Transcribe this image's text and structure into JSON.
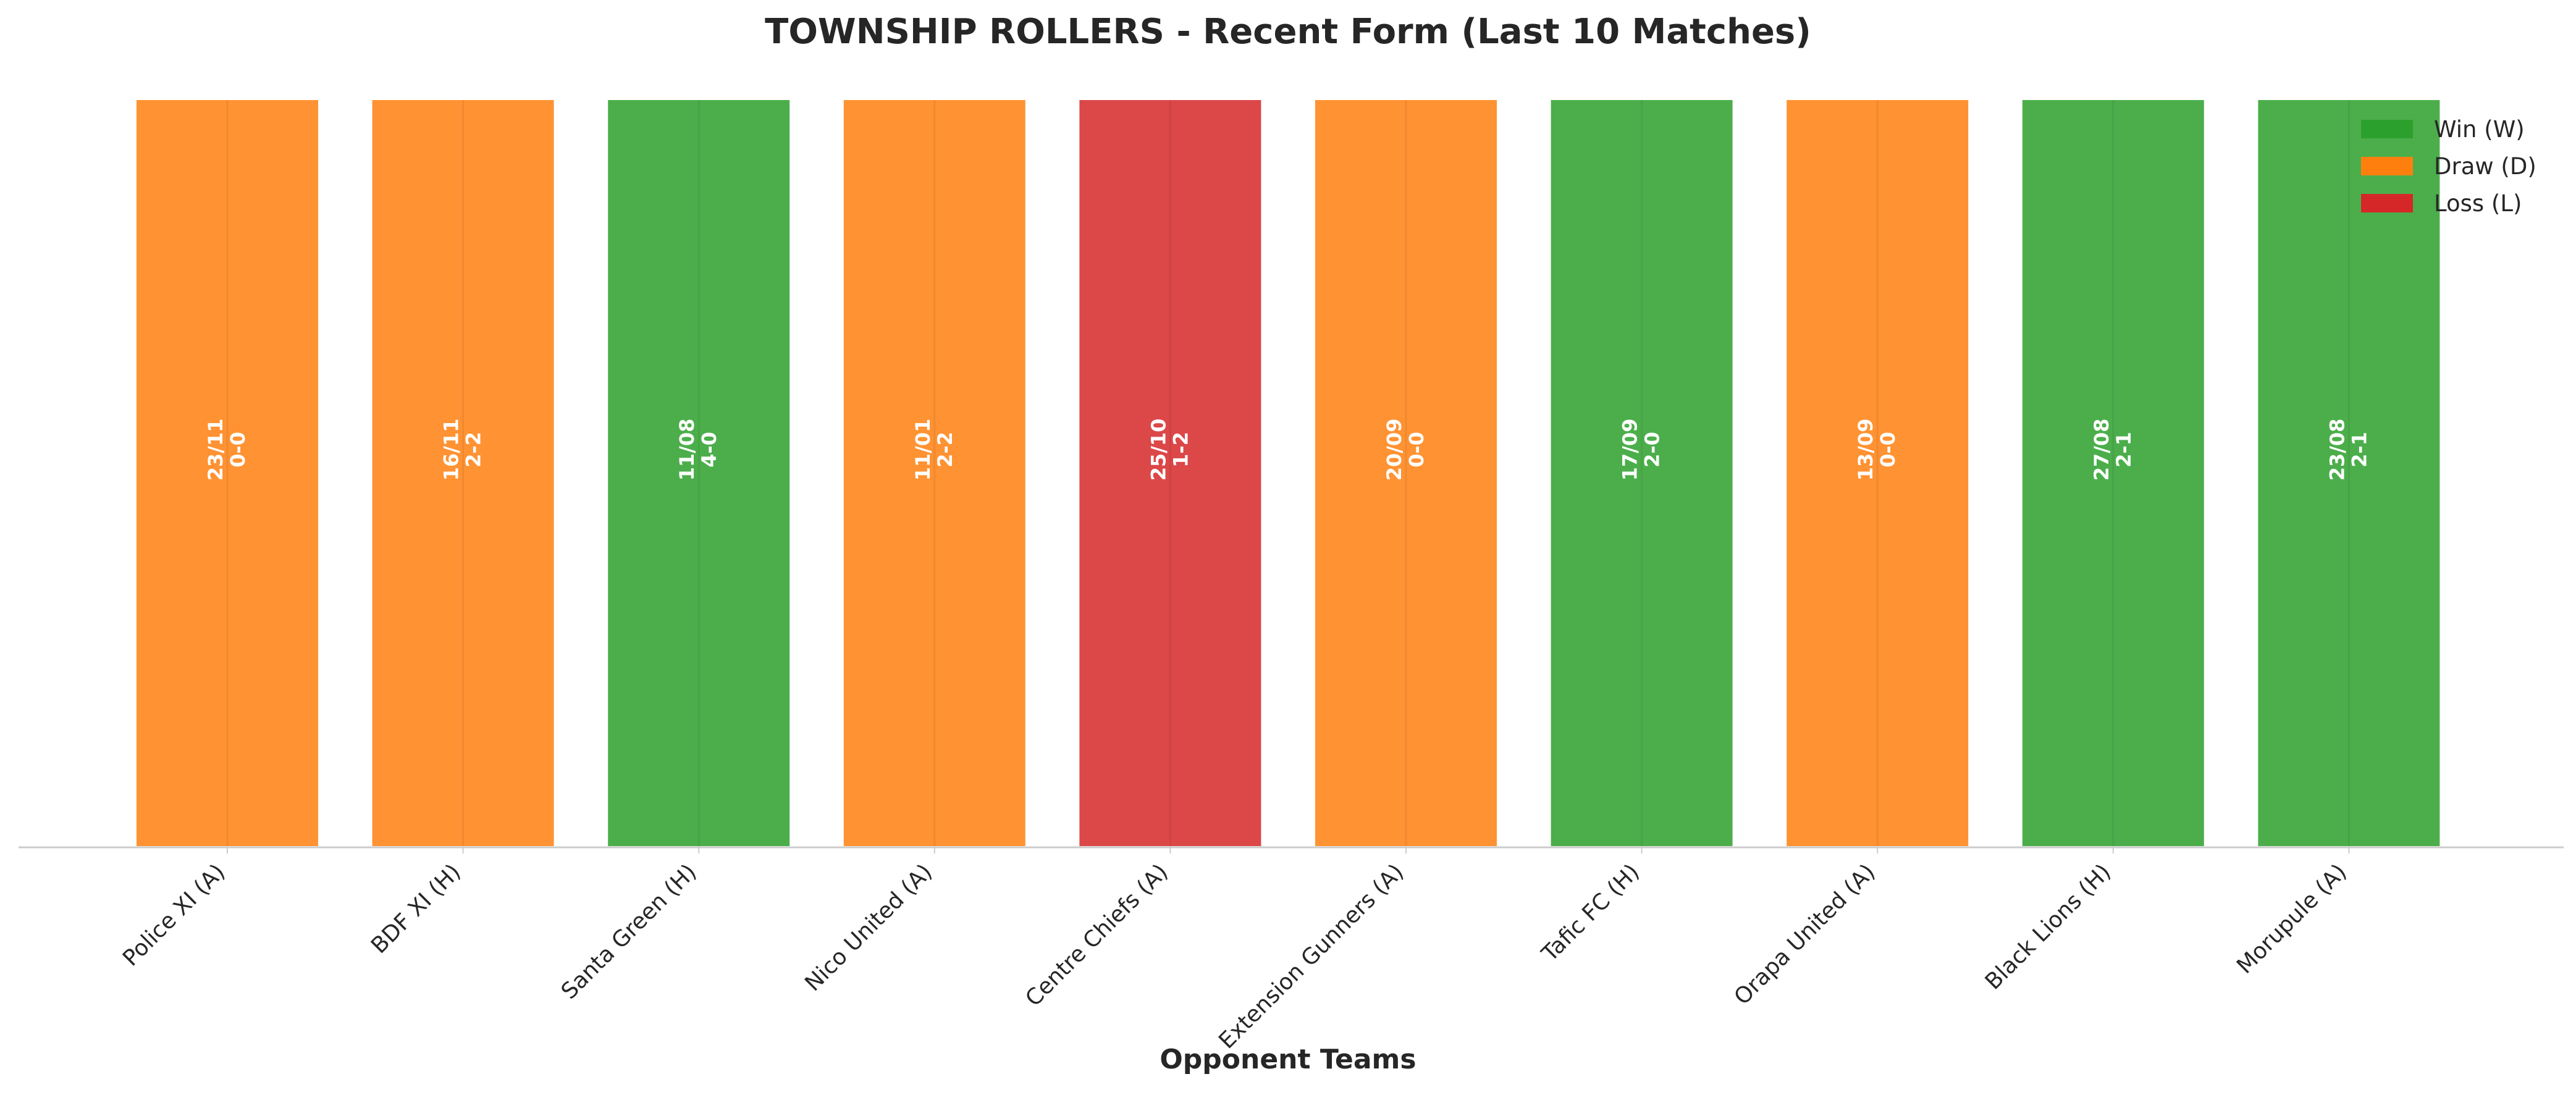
{
  "chart_data": {
    "type": "bar",
    "title": "TOWNSHIP ROLLERS - Recent Form (Last 10 Matches)",
    "xlabel": "Opponent Teams",
    "ylabel": "",
    "ylim": [
      0,
      1
    ],
    "grid": false,
    "legend_position": "top-right",
    "categories": [
      "Police XI (A)",
      "BDF XI (H)",
      "Santa Green (H)",
      "Nico United (A)",
      "Centre Chiefs (A)",
      "Extension Gunners (A)",
      "Tafic FC (H)",
      "Orapa United (A)",
      "Black Lions (H)",
      "Morupule (A)"
    ],
    "values": [
      1,
      1,
      1,
      1,
      1,
      1,
      1,
      1,
      1,
      1
    ],
    "results": [
      "D",
      "D",
      "W",
      "D",
      "L",
      "D",
      "W",
      "D",
      "W",
      "W"
    ],
    "dates": [
      "23/11",
      "16/11",
      "11/08",
      "11/01",
      "25/10",
      "20/09",
      "17/09",
      "13/09",
      "27/08",
      "23/08"
    ],
    "scores": [
      "0-0",
      "2-2",
      "4-0",
      "2-2",
      "1-2",
      "0-0",
      "2-0",
      "0-0",
      "2-1",
      "2-1"
    ],
    "legend": [
      {
        "key": "W",
        "label": "Win (W)",
        "color": "#2ca02c"
      },
      {
        "key": "D",
        "label": "Draw (D)",
        "color": "#ff7f0e"
      },
      {
        "key": "L",
        "label": "Loss (L)",
        "color": "#d62728"
      }
    ]
  }
}
